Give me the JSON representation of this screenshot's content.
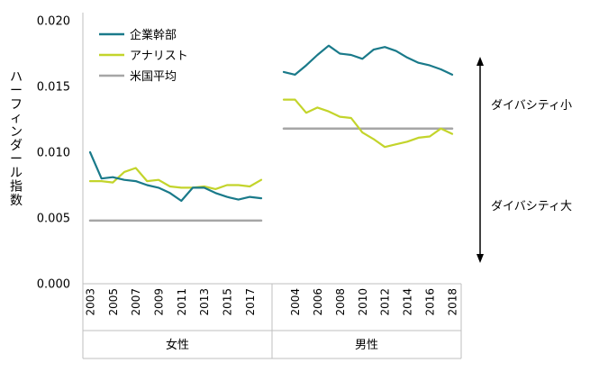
{
  "chart_data": {
    "type": "line",
    "ylabel": "ハーフィンダール指数",
    "yticks": [
      "0.000",
      "0.005",
      "0.010",
      "0.015",
      "0.020"
    ],
    "ylim": [
      0,
      0.02
    ],
    "grid": false,
    "legend_position": "top-left",
    "panels": [
      {
        "label": "女性",
        "x": [
          2003,
          2004,
          2005,
          2006,
          2007,
          2008,
          2009,
          2010,
          2011,
          2012,
          2013,
          2014,
          2015,
          2016,
          2017,
          2018
        ],
        "x_tick_labels": [
          "2003",
          "2005",
          "2007",
          "2009",
          "2011",
          "2013",
          "2015",
          "2017"
        ],
        "series": [
          {
            "name": "企業幹部",
            "values": [
              0.01,
              0.008,
              0.0081,
              0.0079,
              0.0078,
              0.0075,
              0.0073,
              0.0069,
              0.0063,
              0.0073,
              0.0073,
              0.0069,
              0.0066,
              0.0064,
              0.0066,
              0.0065
            ]
          },
          {
            "name": "アナリスト",
            "values": [
              0.0078,
              0.0078,
              0.0077,
              0.0085,
              0.0088,
              0.0078,
              0.0079,
              0.0074,
              0.0073,
              0.0073,
              0.0074,
              0.0072,
              0.0075,
              0.0075,
              0.0074,
              0.0079
            ]
          },
          {
            "name": "米国平均",
            "values": [
              0.0048,
              0.0048,
              0.0048,
              0.0048,
              0.0048,
              0.0048,
              0.0048,
              0.0048,
              0.0048,
              0.0048,
              0.0048,
              0.0048,
              0.0048,
              0.0048,
              0.0048,
              0.0048
            ]
          }
        ]
      },
      {
        "label": "男性",
        "x": [
          2003,
          2004,
          2005,
          2006,
          2007,
          2008,
          2009,
          2010,
          2011,
          2012,
          2013,
          2014,
          2015,
          2016,
          2017,
          2018
        ],
        "x_tick_labels": [
          "2004",
          "2006",
          "2008",
          "2010",
          "2012",
          "2014",
          "2016",
          "2018"
        ],
        "series": [
          {
            "name": "企業幹部",
            "values": [
              0.0161,
              0.0159,
              0.0166,
              0.0174,
              0.0181,
              0.0175,
              0.0174,
              0.0171,
              0.0178,
              0.018,
              0.0177,
              0.0172,
              0.0168,
              0.0166,
              0.0163,
              0.0159
            ]
          },
          {
            "name": "アナリスト",
            "values": [
              0.014,
              0.014,
              0.013,
              0.0134,
              0.0131,
              0.0127,
              0.0126,
              0.0115,
              0.011,
              0.0104,
              0.0106,
              0.0108,
              0.0111,
              0.0112,
              0.0118,
              0.0114
            ]
          },
          {
            "name": "米国平均",
            "values": [
              0.0118,
              0.0118,
              0.0118,
              0.0118,
              0.0118,
              0.0118,
              0.0118,
              0.0118,
              0.0118,
              0.0118,
              0.0118,
              0.0118,
              0.0118,
              0.0118,
              0.0118,
              0.0118
            ]
          }
        ]
      }
    ],
    "annotations": {
      "top": "ダイバシティ小",
      "bottom": "ダイバシティ大"
    }
  },
  "colors": {
    "企業幹部": "#1a7a8a",
    "アナリスト": "#c3d42b",
    "米国平均": "#a6a6a6",
    "axis": "#bfbfbf",
    "arrow": "#000000"
  }
}
